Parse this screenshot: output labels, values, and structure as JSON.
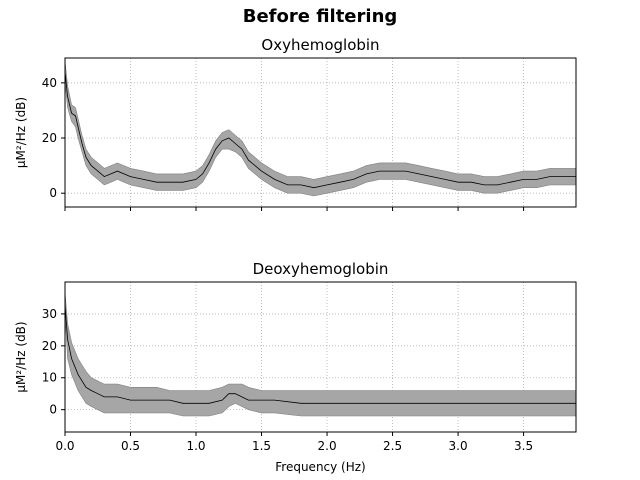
{
  "suptitle": "Before filtering",
  "chart_data": [
    {
      "type": "line",
      "title": "Oxyhemoglobin",
      "xlabel": "",
      "ylabel": "µM²/Hz (dB)",
      "xlim": [
        0,
        3.9
      ],
      "ylim": [
        -5,
        49
      ],
      "xticks": [
        0,
        0.5,
        1,
        1.5,
        2,
        2.5,
        3,
        3.5
      ],
      "xticklabels": [],
      "yticks": [
        0,
        20,
        40
      ],
      "yticklabels": [
        "0",
        "20",
        "40"
      ],
      "grid": true,
      "mean_color": "#000000",
      "band_color": "#a6a6a6",
      "series": [
        {
          "x": [
            0.0,
            0.02,
            0.05,
            0.08,
            0.1,
            0.13,
            0.16,
            0.2,
            0.25,
            0.3,
            0.35,
            0.4,
            0.45,
            0.5,
            0.6,
            0.7,
            0.8,
            0.9,
            1.0,
            1.05,
            1.1,
            1.15,
            1.2,
            1.25,
            1.3,
            1.35,
            1.4,
            1.45,
            1.5,
            1.6,
            1.7,
            1.8,
            1.9,
            2.0,
            2.1,
            2.2,
            2.3,
            2.4,
            2.5,
            2.6,
            2.7,
            2.8,
            2.9,
            3.0,
            3.1,
            3.2,
            3.3,
            3.4,
            3.5,
            3.6,
            3.7,
            3.8,
            3.9
          ],
          "mean": [
            44,
            35,
            29,
            28,
            24,
            18,
            13,
            10,
            8,
            6,
            7,
            8,
            7,
            6,
            5,
            4,
            4,
            4,
            5,
            7,
            11,
            16,
            19,
            20,
            18,
            16,
            12,
            10,
            8,
            5,
            3,
            3,
            2,
            3,
            4,
            5,
            7,
            8,
            8,
            8,
            7,
            6,
            5,
            4,
            4,
            3,
            3,
            4,
            5,
            5,
            6,
            6,
            6
          ],
          "lower": [
            40,
            31,
            26,
            24,
            20,
            15,
            10,
            7,
            5,
            3,
            4,
            5,
            4,
            3,
            2,
            1,
            1,
            1,
            2,
            4,
            8,
            13,
            16,
            16,
            15,
            13,
            9,
            7,
            5,
            2,
            0,
            0,
            -1,
            0,
            1,
            2,
            4,
            5,
            5,
            5,
            4,
            3,
            2,
            1,
            1,
            0,
            0,
            1,
            2,
            2,
            3,
            3,
            3
          ],
          "upper": [
            48,
            39,
            32,
            31,
            27,
            21,
            16,
            13,
            11,
            9,
            10,
            11,
            10,
            9,
            8,
            7,
            7,
            7,
            8,
            10,
            14,
            19,
            22,
            23,
            21,
            19,
            15,
            13,
            11,
            8,
            6,
            6,
            5,
            6,
            7,
            8,
            10,
            11,
            11,
            11,
            10,
            9,
            8,
            7,
            7,
            6,
            6,
            7,
            8,
            8,
            9,
            9,
            9
          ]
        }
      ]
    },
    {
      "type": "line",
      "title": "Deoxyhemoglobin",
      "xlabel": "Frequency (Hz)",
      "ylabel": "µM²/Hz (dB)",
      "xlim": [
        0,
        3.9
      ],
      "ylim": [
        -7,
        40
      ],
      "xticks": [
        0,
        0.5,
        1,
        1.5,
        2,
        2.5,
        3,
        3.5
      ],
      "xticklabels": [
        "0.0",
        "0.5",
        "1.0",
        "1.5",
        "2.0",
        "2.5",
        "3.0",
        "3.5"
      ],
      "yticks": [
        0,
        10,
        20,
        30
      ],
      "yticklabels": [
        "0",
        "10",
        "20",
        "30"
      ],
      "grid": true,
      "mean_color": "#000000",
      "band_color": "#a6a6a6",
      "series": [
        {
          "x": [
            0.0,
            0.02,
            0.05,
            0.08,
            0.1,
            0.13,
            0.16,
            0.2,
            0.25,
            0.3,
            0.4,
            0.5,
            0.6,
            0.7,
            0.8,
            0.9,
            1.0,
            1.1,
            1.2,
            1.25,
            1.3,
            1.35,
            1.4,
            1.5,
            1.6,
            1.8,
            2.0,
            2.2,
            2.4,
            2.6,
            2.8,
            3.0,
            3.2,
            3.4,
            3.6,
            3.8,
            3.9
          ],
          "mean": [
            33,
            22,
            16,
            13,
            11,
            9,
            7,
            6,
            5,
            4,
            4,
            3,
            3,
            3,
            3,
            2,
            2,
            2,
            3,
            5,
            5,
            4,
            3,
            3,
            3,
            2,
            2,
            2,
            2,
            2,
            2,
            2,
            2,
            2,
            2,
            2,
            2
          ],
          "lower": [
            30,
            16,
            11,
            8,
            6,
            4,
            2,
            1,
            0,
            -1,
            -1,
            -1,
            -1,
            -1,
            -1,
            -2,
            -2,
            -2,
            -1,
            1,
            2,
            1,
            0,
            -1,
            -1,
            -2,
            -2,
            -2,
            -2,
            -2,
            -2,
            -2,
            -2,
            -2,
            -2,
            -2,
            -2
          ],
          "upper": [
            37,
            27,
            21,
            18,
            16,
            14,
            12,
            10,
            9,
            8,
            8,
            7,
            7,
            7,
            6,
            6,
            6,
            6,
            7,
            8,
            8,
            8,
            7,
            6,
            6,
            6,
            6,
            6,
            6,
            6,
            6,
            6,
            6,
            6,
            6,
            6,
            6
          ]
        }
      ]
    }
  ]
}
